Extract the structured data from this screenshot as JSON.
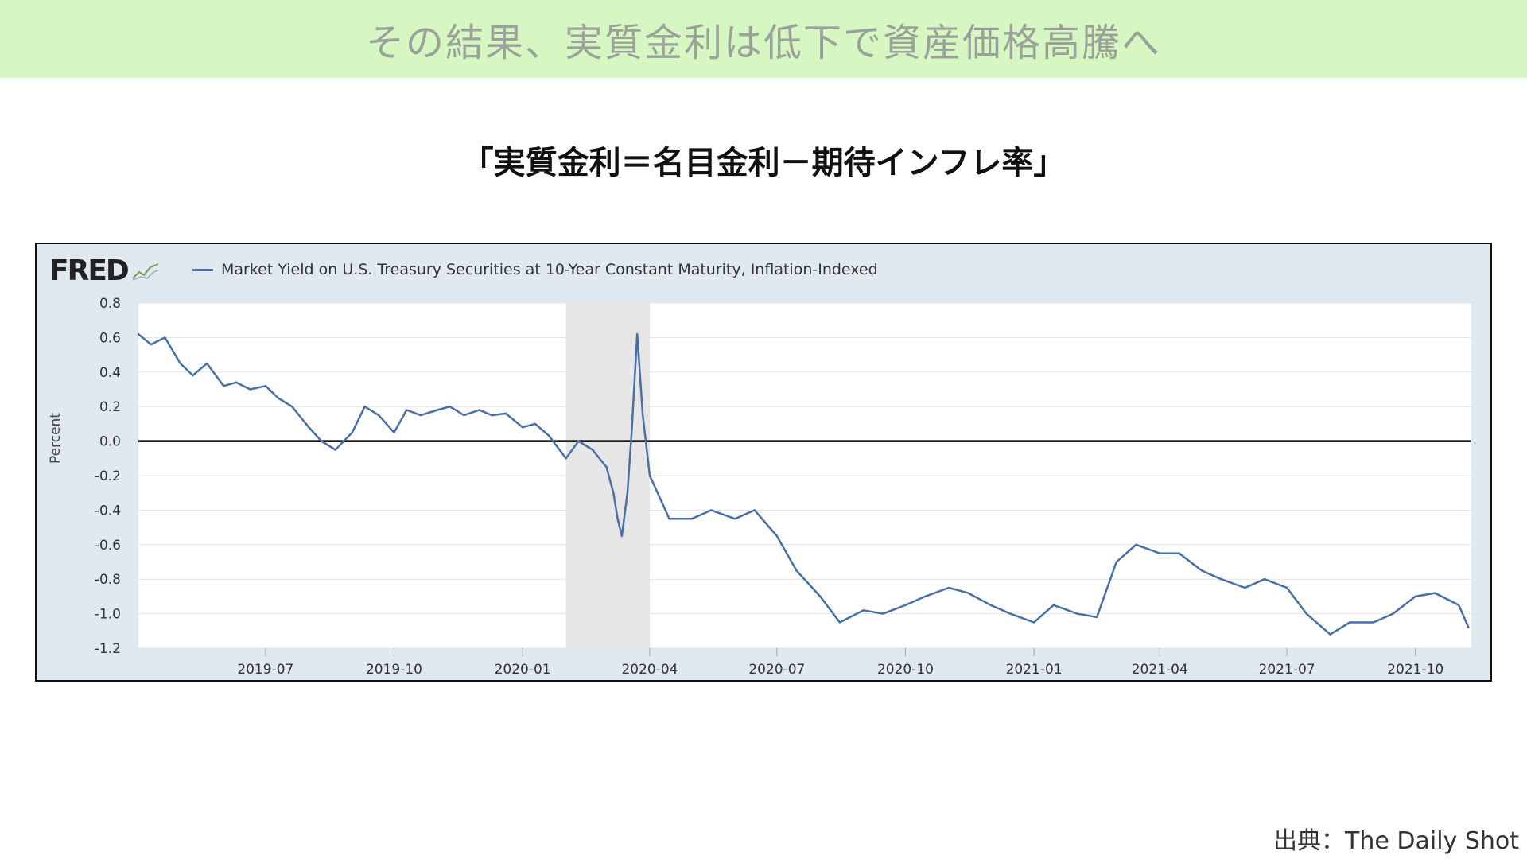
{
  "banner": {
    "title": "その結果、実質金利は低下で資産価格高騰へ"
  },
  "subtitle": "「実質金利＝名目金利－期待インフレ率」",
  "source": "出典：The Daily Shot",
  "colors": {
    "banner_bg": "#d6f7c2",
    "series": "#4a6fa5",
    "recession": "#e6e6e6",
    "zero_line": "#000000"
  },
  "chart_data": {
    "type": "line",
    "brand": "FRED",
    "legend": "Market Yield on U.S. Treasury Securities at 10-Year Constant Maturity, Inflation-Indexed",
    "ylabel": "Percent",
    "ylim": [
      -1.2,
      0.8
    ],
    "xlim": [
      "2019-04-01",
      "2021-11-10"
    ],
    "yticks": [
      "0.8",
      "0.6",
      "0.4",
      "0.2",
      "0.0",
      "-0.2",
      "-0.4",
      "-0.6",
      "-0.8",
      "-1.0",
      "-1.2"
    ],
    "xticks": [
      {
        "date": "2019-07-01",
        "label": "2019-07"
      },
      {
        "date": "2019-10-01",
        "label": "2019-10"
      },
      {
        "date": "2020-01-01",
        "label": "2020-01"
      },
      {
        "date": "2020-04-01",
        "label": "2020-04"
      },
      {
        "date": "2020-07-01",
        "label": "2020-07"
      },
      {
        "date": "2020-10-01",
        "label": "2020-10"
      },
      {
        "date": "2021-01-01",
        "label": "2021-01"
      },
      {
        "date": "2021-04-01",
        "label": "2021-04"
      },
      {
        "date": "2021-07-01",
        "label": "2021-07"
      },
      {
        "date": "2021-10-01",
        "label": "2021-10"
      }
    ],
    "recession_shading": {
      "start": "2020-02-01",
      "end": "2020-04-01"
    },
    "grid": true,
    "series": [
      {
        "x": [
          "2019-04-01",
          "2019-04-10",
          "2019-04-20",
          "2019-05-01",
          "2019-05-10",
          "2019-05-20",
          "2019-06-01",
          "2019-06-10",
          "2019-06-20",
          "2019-07-01",
          "2019-07-10",
          "2019-07-20",
          "2019-08-01",
          "2019-08-10",
          "2019-08-20",
          "2019-09-01",
          "2019-09-10",
          "2019-09-20",
          "2019-10-01",
          "2019-10-10",
          "2019-10-20",
          "2019-11-01",
          "2019-11-10",
          "2019-11-20",
          "2019-12-01",
          "2019-12-10",
          "2019-12-20",
          "2020-01-01",
          "2020-01-10",
          "2020-01-20",
          "2020-02-01",
          "2020-02-10",
          "2020-02-20",
          "2020-03-01",
          "2020-03-06",
          "2020-03-09",
          "2020-03-12",
          "2020-03-16",
          "2020-03-19",
          "2020-03-23",
          "2020-03-27",
          "2020-04-01",
          "2020-04-15",
          "2020-05-01",
          "2020-05-15",
          "2020-06-01",
          "2020-06-15",
          "2020-07-01",
          "2020-07-15",
          "2020-08-01",
          "2020-08-15",
          "2020-09-01",
          "2020-09-15",
          "2020-10-01",
          "2020-10-15",
          "2020-11-01",
          "2020-11-15",
          "2020-12-01",
          "2020-12-15",
          "2021-01-01",
          "2021-01-15",
          "2021-02-01",
          "2021-02-15",
          "2021-03-01",
          "2021-03-15",
          "2021-04-01",
          "2021-04-15",
          "2021-05-01",
          "2021-05-15",
          "2021-06-01",
          "2021-06-15",
          "2021-07-01",
          "2021-07-15",
          "2021-08-01",
          "2021-08-15",
          "2021-09-01",
          "2021-09-15",
          "2021-10-01",
          "2021-10-15",
          "2021-11-01",
          "2021-11-08"
        ],
        "y": [
          0.62,
          0.56,
          0.6,
          0.45,
          0.38,
          0.45,
          0.32,
          0.34,
          0.3,
          0.32,
          0.25,
          0.2,
          0.08,
          0.0,
          -0.05,
          0.05,
          0.2,
          0.15,
          0.05,
          0.18,
          0.15,
          0.18,
          0.2,
          0.15,
          0.18,
          0.15,
          0.16,
          0.08,
          0.1,
          0.03,
          -0.1,
          0.0,
          -0.05,
          -0.15,
          -0.3,
          -0.45,
          -0.55,
          -0.3,
          0.05,
          0.62,
          0.15,
          -0.2,
          -0.45,
          -0.45,
          -0.4,
          -0.45,
          -0.4,
          -0.55,
          -0.75,
          -0.9,
          -1.05,
          -0.98,
          -1.0,
          -0.95,
          -0.9,
          -0.85,
          -0.88,
          -0.95,
          -1.0,
          -1.05,
          -0.95,
          -1.0,
          -1.02,
          -0.7,
          -0.6,
          -0.65,
          -0.65,
          -0.75,
          -0.8,
          -0.85,
          -0.8,
          -0.85,
          -1.0,
          -1.12,
          -1.05,
          -1.05,
          -1.0,
          -0.9,
          -0.88,
          -0.95,
          -1.08
        ]
      }
    ]
  }
}
